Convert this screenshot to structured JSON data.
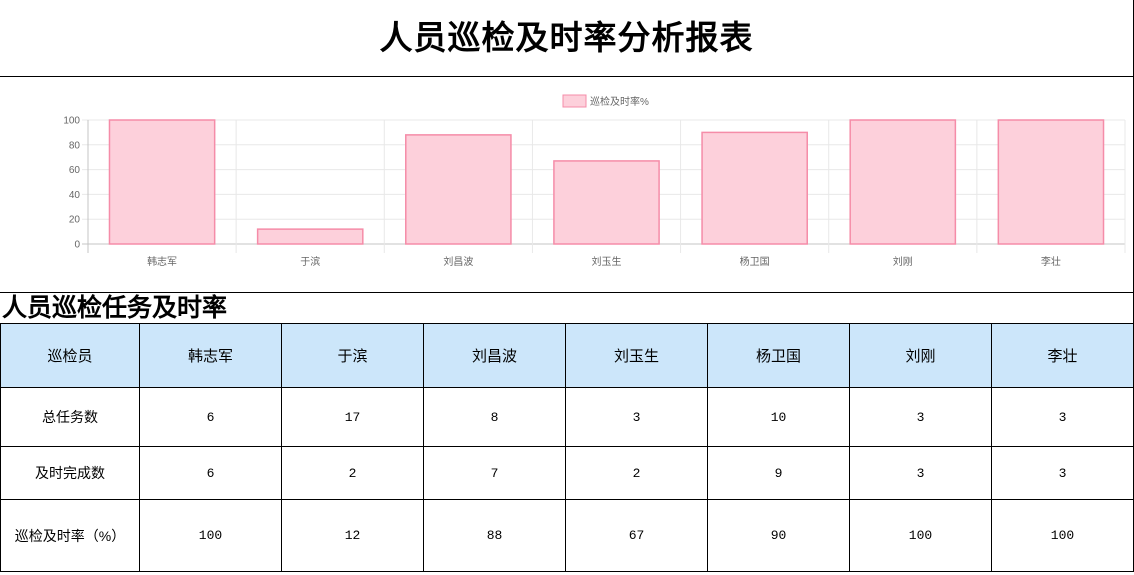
{
  "page": {
    "title": "人员巡检及时率分析报表"
  },
  "chart_data": {
    "type": "bar",
    "categories": [
      "韩志军",
      "于滨",
      "刘昌波",
      "刘玉生",
      "杨卫国",
      "刘刚",
      "李壮"
    ],
    "series": [
      {
        "name": "巡检及时率%",
        "values": [
          100,
          12,
          88,
          67,
          90,
          100,
          100
        ]
      }
    ],
    "ylim": [
      0,
      100
    ],
    "yticks": [
      0,
      20,
      40,
      60,
      80,
      100
    ],
    "grid": true,
    "legend": "top",
    "colors": {
      "fill": "#fdd0db",
      "stroke": "#f58ca8",
      "grid": "#e8e8e8",
      "axis": "#c4c4c4",
      "text": "#666666"
    }
  },
  "table": {
    "heading": "人员巡检任务及时率",
    "header_bg": "#cce6fa",
    "header": [
      "巡检员",
      "韩志军",
      "于滨",
      "刘昌波",
      "刘玉生",
      "杨卫国",
      "刘刚",
      "李壮"
    ],
    "rows": [
      {
        "label": "总任务数",
        "values": [
          6,
          17,
          8,
          3,
          10,
          3,
          3
        ]
      },
      {
        "label": "及时完成数",
        "values": [
          6,
          2,
          7,
          2,
          9,
          3,
          3
        ]
      },
      {
        "label": "巡检及时率（%）",
        "values": [
          100,
          12,
          88,
          67,
          90,
          100,
          100
        ]
      }
    ]
  }
}
